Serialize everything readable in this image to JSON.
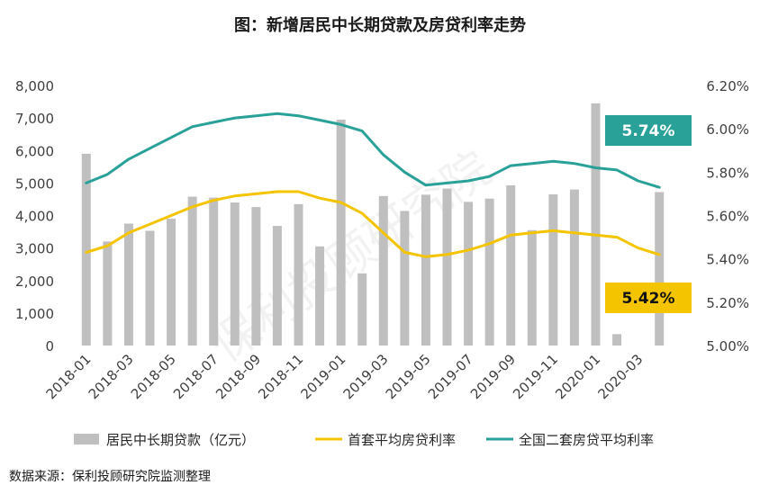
{
  "title": "图：新增居民中长期贷款及房贷利率走势",
  "source": "数据来源：保利投顾研究院监测整理",
  "watermark": "保利投顾研究院",
  "chart_data": {
    "type": "bar+line",
    "categories": [
      "2018-01",
      "2018-02",
      "2018-03",
      "2018-04",
      "2018-05",
      "2018-06",
      "2018-07",
      "2018-08",
      "2018-09",
      "2018-10",
      "2018-11",
      "2018-12",
      "2019-01",
      "2019-02",
      "2019-03",
      "2019-04",
      "2019-05",
      "2019-06",
      "2019-07",
      "2019-08",
      "2019-09",
      "2019-10",
      "2019-11",
      "2019-12",
      "2020-01",
      "2020-02",
      "2020-03",
      "2020-04"
    ],
    "x_tick_labels": [
      "2018-01",
      "",
      "2018-03",
      "",
      "2018-05",
      "",
      "2018-07",
      "",
      "2018-09",
      "",
      "2018-11",
      "",
      "2019-01",
      "",
      "2019-03",
      "",
      "2019-05",
      "",
      "2019-07",
      "",
      "2019-09",
      "",
      "2019-11",
      "",
      "2020-01",
      "",
      "2020-03",
      ""
    ],
    "left_axis": {
      "ylim": [
        0,
        8000
      ],
      "ticks": [
        "0",
        "1,000",
        "2,000",
        "3,000",
        "4,000",
        "5,000",
        "6,000",
        "7,000",
        "8,000"
      ]
    },
    "right_axis": {
      "ylim": [
        5.0,
        6.2
      ],
      "ticks": [
        "5.00%",
        "5.20%",
        "5.40%",
        "5.60%",
        "5.80%",
        "6.00%",
        "6.20%"
      ]
    },
    "grid": false,
    "legend_position": "bottom",
    "series": [
      {
        "name": "居民中长期贷款（亿元）",
        "type": "bar",
        "axis": "left",
        "color": "#bfbfbf",
        "values": [
          5900,
          3200,
          3750,
          3530,
          3900,
          4580,
          4550,
          4400,
          4260,
          3680,
          4350,
          3050,
          6950,
          2220,
          4600,
          4140,
          4640,
          4830,
          4420,
          4520,
          4930,
          3550,
          4650,
          4800,
          7450,
          350,
          null,
          4720
        ]
      },
      {
        "name": "首套平均房贷利率",
        "type": "line",
        "axis": "left_right",
        "axis_side": "right",
        "color": "#f5c400",
        "values": [
          5.43,
          5.46,
          5.52,
          5.56,
          5.6,
          5.64,
          5.67,
          5.69,
          5.7,
          5.71,
          5.71,
          5.68,
          5.66,
          5.61,
          5.52,
          5.43,
          5.41,
          5.42,
          5.44,
          5.47,
          5.51,
          5.52,
          5.53,
          5.52,
          5.51,
          5.5,
          5.45,
          5.42
        ]
      },
      {
        "name": "全国二套房贷平均利率",
        "type": "line",
        "axis": "right",
        "color": "#2aa198",
        "values": [
          5.75,
          5.79,
          5.86,
          5.91,
          5.96,
          6.01,
          6.03,
          6.05,
          6.06,
          6.07,
          6.06,
          6.04,
          6.02,
          5.99,
          5.88,
          5.8,
          5.74,
          5.75,
          5.76,
          5.78,
          5.83,
          5.84,
          5.85,
          5.84,
          5.82,
          5.81,
          5.76,
          5.73
        ]
      }
    ],
    "callouts": [
      {
        "text": "5.74%",
        "series": "全国二套房贷平均利率",
        "color": "#2aa198"
      },
      {
        "text": "5.42%",
        "series": "首套平均房贷利率",
        "color": "#f5c400"
      }
    ]
  }
}
